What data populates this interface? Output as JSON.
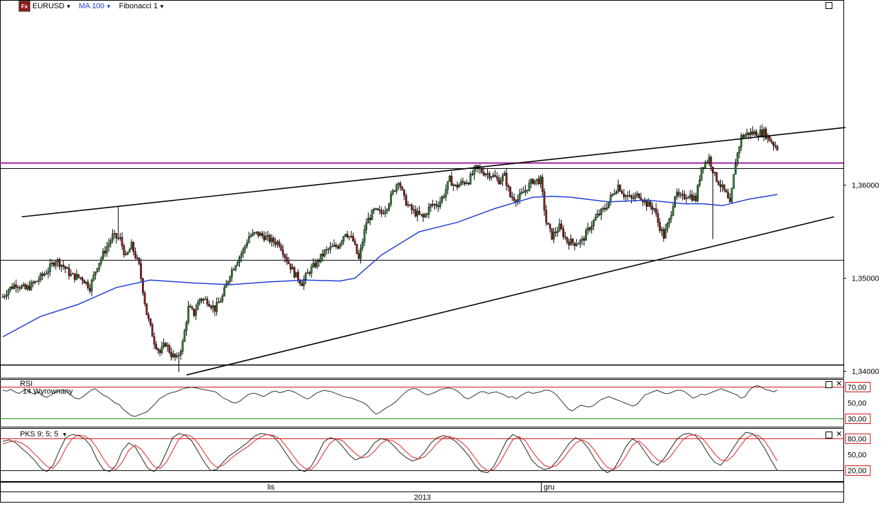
{
  "toolbar": {
    "logo": "Fx",
    "symbol": "EURUSD",
    "ma_label": "MA 100",
    "fib_label": "Fibonacci 1"
  },
  "colors": {
    "candle_up": "#2e7d32",
    "candle_down": "#8b1a1a",
    "ma": "#1f3fd6",
    "fib_line": "#a020a0",
    "rsi_upper": "#d01010",
    "rsi_lower": "#109010",
    "stoch_k": "#222222",
    "stoch_d": "#e02020"
  },
  "icons": [
    "maximize-icon",
    "close-icon",
    "dropdown-caret-icon"
  ],
  "chart_data": [
    {
      "type": "candlestick",
      "symbol": "EURUSD",
      "ylim": [
        1.3393,
        1.3799
      ],
      "yticks": [
        "1,34000",
        "1,35000",
        "1,36000"
      ],
      "xticks": [
        "lis",
        "gru"
      ],
      "year_label": "2013",
      "close_path": [
        [
          0,
          1.348
        ],
        [
          3,
          1.3488
        ],
        [
          7,
          1.3494
        ],
        [
          12,
          1.3488
        ],
        [
          18,
          1.3497
        ],
        [
          24,
          1.3509
        ],
        [
          28,
          1.352
        ],
        [
          32,
          1.3513
        ],
        [
          36,
          1.3503
        ],
        [
          42,
          1.35
        ],
        [
          46,
          1.349
        ],
        [
          50,
          1.3514
        ],
        [
          54,
          1.353
        ],
        [
          58,
          1.3545
        ],
        [
          62,
          1.3542
        ],
        [
          65,
          1.3522
        ],
        [
          68,
          1.3535
        ],
        [
          72,
          1.3513
        ],
        [
          76,
          1.3462
        ],
        [
          80,
          1.3432
        ],
        [
          83,
          1.342
        ],
        [
          86,
          1.343
        ],
        [
          89,
          1.3418
        ],
        [
          92,
          1.3413
        ],
        [
          95,
          1.343
        ],
        [
          98,
          1.3468
        ],
        [
          101,
          1.3462
        ],
        [
          104,
          1.3478
        ],
        [
          108,
          1.3476
        ],
        [
          112,
          1.3467
        ],
        [
          116,
          1.348
        ],
        [
          120,
          1.3505
        ],
        [
          124,
          1.352
        ],
        [
          127,
          1.353
        ],
        [
          130,
          1.3545
        ],
        [
          134,
          1.3548
        ],
        [
          138,
          1.3545
        ],
        [
          142,
          1.354
        ],
        [
          146,
          1.3538
        ],
        [
          150,
          1.352
        ],
        [
          154,
          1.3505
        ],
        [
          158,
          1.3495
        ],
        [
          162,
          1.3508
        ],
        [
          166,
          1.3517
        ],
        [
          170,
          1.3528
        ],
        [
          173,
          1.3532
        ],
        [
          177,
          1.3535
        ],
        [
          181,
          1.355
        ],
        [
          185,
          1.354
        ],
        [
          188,
          1.352
        ],
        [
          192,
          1.356
        ],
        [
          196,
          1.3572
        ],
        [
          200,
          1.357
        ],
        [
          203,
          1.3578
        ],
        [
          206,
          1.3592
        ],
        [
          209,
          1.3606
        ],
        [
          212,
          1.3585
        ],
        [
          215,
          1.3575
        ],
        [
          218,
          1.357
        ],
        [
          222,
          1.3565
        ],
        [
          226,
          1.3578
        ],
        [
          230,
          1.358
        ],
        [
          233,
          1.359
        ],
        [
          236,
          1.3606
        ],
        [
          239,
          1.3598
        ],
        [
          242,
          1.3602
        ],
        [
          246,
          1.3605
        ],
        [
          250,
          1.3618
        ],
        [
          254,
          1.3614
        ],
        [
          258,
          1.3611
        ],
        [
          262,
          1.3605
        ],
        [
          265,
          1.361
        ],
        [
          268,
          1.3588
        ],
        [
          272,
          1.3585
        ],
        [
          276,
          1.3595
        ],
        [
          280,
          1.3605
        ],
        [
          284,
          1.3605
        ],
        [
          287,
          1.356
        ],
        [
          290,
          1.3545
        ],
        [
          294,
          1.3555
        ],
        [
          298,
          1.354
        ],
        [
          302,
          1.3538
        ],
        [
          306,
          1.354
        ],
        [
          310,
          1.3555
        ],
        [
          314,
          1.3567
        ],
        [
          318,
          1.3575
        ],
        [
          322,
          1.359
        ],
        [
          325,
          1.36
        ],
        [
          328,
          1.359
        ],
        [
          332,
          1.3585
        ],
        [
          336,
          1.359
        ],
        [
          340,
          1.358
        ],
        [
          344,
          1.3575
        ],
        [
          346,
          1.356
        ],
        [
          349,
          1.3545
        ],
        [
          352,
          1.3562
        ],
        [
          355,
          1.359
        ],
        [
          358,
          1.3586
        ],
        [
          362,
          1.359
        ],
        [
          366,
          1.3585
        ],
        [
          369,
          1.362
        ],
        [
          373,
          1.3629
        ],
        [
          376,
          1.361
        ],
        [
          379,
          1.36
        ],
        [
          382,
          1.359
        ],
        [
          384,
          1.3578
        ],
        [
          387,
          1.3625
        ],
        [
          390,
          1.3652
        ],
        [
          394,
          1.3656
        ],
        [
          398,
          1.3656
        ],
        [
          402,
          1.3657
        ],
        [
          405,
          1.3649
        ],
        [
          409,
          1.364
        ]
      ],
      "ma100_path": [
        [
          0,
          1.3437
        ],
        [
          20,
          1.3459
        ],
        [
          40,
          1.3472
        ],
        [
          60,
          1.349
        ],
        [
          78,
          1.3498
        ],
        [
          100,
          1.3495
        ],
        [
          120,
          1.3493
        ],
        [
          140,
          1.3496
        ],
        [
          160,
          1.3498
        ],
        [
          178,
          1.3497
        ],
        [
          186,
          1.35
        ],
        [
          200,
          1.3525
        ],
        [
          220,
          1.355
        ],
        [
          240,
          1.356
        ],
        [
          260,
          1.3575
        ],
        [
          280,
          1.3587
        ],
        [
          290,
          1.3588
        ],
        [
          300,
          1.3587
        ],
        [
          320,
          1.3582
        ],
        [
          340,
          1.3584
        ],
        [
          360,
          1.358
        ],
        [
          370,
          1.358
        ],
        [
          380,
          1.3578
        ],
        [
          394,
          1.3585
        ],
        [
          409,
          1.359
        ]
      ],
      "extremes": [
        [
          93,
          1.3399
        ],
        [
          61,
          1.3578
        ],
        [
          375,
          1.3542
        ]
      ],
      "trendlines": [
        {
          "name": "upper-resistance-trendline",
          "from": [
            10,
            1.3566
          ],
          "to": [
            445,
            1.3662
          ]
        },
        {
          "name": "lower-support-trendline",
          "from": [
            97,
            1.3396
          ],
          "to": [
            439,
            1.3566
          ]
        }
      ],
      "hlines": [
        {
          "name": "fibonacci-level-line",
          "y": 1.3624,
          "color": "fib"
        },
        {
          "name": "horizontal-level-line",
          "y": 1.3618
        },
        {
          "name": "horizontal-level-line",
          "y": 1.352
        },
        {
          "name": "horizontal-level-line",
          "y": 1.3407,
          "bold": true
        }
      ]
    },
    {
      "type": "line",
      "name": "RSI",
      "settings": "14 Wyrownany",
      "ylim": [
        20,
        80
      ],
      "yticks": [
        "70,00",
        "50,00",
        "30,00"
      ],
      "upper": 70,
      "lower": 30,
      "values": [
        66,
        65,
        67,
        64,
        62,
        65,
        67,
        63,
        61,
        64,
        59,
        57,
        60,
        63,
        65,
        67,
        64,
        60,
        56,
        55,
        58,
        62,
        66,
        68,
        64,
        60,
        58,
        54,
        50,
        48,
        42,
        38,
        34,
        33,
        35,
        37,
        39,
        44,
        49,
        55,
        58,
        61,
        63,
        64,
        66,
        68,
        69,
        70,
        69,
        68,
        67,
        66,
        65,
        64,
        60,
        56,
        54,
        51,
        50,
        52,
        56,
        60,
        62,
        62,
        60,
        58,
        61,
        64,
        65,
        63,
        64,
        66,
        65,
        63,
        60,
        57,
        55,
        58,
        62,
        64,
        66,
        65,
        64,
        62,
        60,
        58,
        57,
        56,
        54,
        52,
        50,
        46,
        40,
        36,
        38,
        42,
        45,
        48,
        52,
        57,
        62,
        66,
        68,
        68,
        65,
        62,
        60,
        62,
        64,
        67,
        68,
        69,
        68,
        66,
        62,
        57,
        55,
        58,
        61,
        64,
        64,
        62,
        63,
        64,
        62,
        60,
        57,
        58,
        55,
        59,
        62,
        64,
        62,
        63,
        64,
        66,
        66,
        64,
        60,
        54,
        48,
        42,
        40,
        44,
        47,
        46,
        45,
        46,
        50,
        54,
        56,
        58,
        56,
        54,
        52,
        50,
        48,
        46,
        48,
        54,
        60,
        62,
        64,
        66,
        64,
        62,
        62,
        64,
        66,
        66,
        64,
        60,
        56,
        58,
        61,
        60,
        62,
        64,
        66,
        68,
        66,
        64,
        62,
        60,
        56,
        58,
        66,
        70,
        72,
        70,
        67,
        66,
        64,
        66
      ],
      "x_extent": [
        0,
        409
      ]
    },
    {
      "type": "line",
      "name": "PKS",
      "settings": "9; 5; 5",
      "ylim": [
        0,
        100
      ],
      "yticks": [
        "80,00",
        "50,00",
        "20,00"
      ],
      "upper": 80,
      "lower": 20,
      "series": [
        {
          "name": "K",
          "values": [
            75,
            78,
            73,
            62,
            52,
            40,
            25,
            18,
            30,
            58,
            82,
            88,
            86,
            80,
            66,
            40,
            22,
            18,
            30,
            58,
            72,
            65,
            45,
            25,
            18,
            30,
            55,
            82,
            90,
            86,
            76,
            56,
            36,
            20,
            22,
            36,
            48,
            56,
            65,
            74,
            85,
            90,
            88,
            84,
            70,
            52,
            35,
            22,
            18,
            28,
            50,
            74,
            82,
            78,
            65,
            50,
            40,
            45,
            55,
            72,
            80,
            78,
            68,
            55,
            45,
            38,
            42,
            55,
            72,
            82,
            86,
            82,
            74,
            62,
            48,
            30,
            18,
            16,
            28,
            52,
            76,
            88,
            82,
            62,
            40,
            28,
            22,
            25,
            38,
            55,
            72,
            82,
            76,
            62,
            42,
            25,
            16,
            22,
            42,
            66,
            80,
            72,
            55,
            38,
            30,
            42,
            60,
            78,
            88,
            90,
            86,
            72,
            52,
            36,
            30,
            44,
            62,
            80,
            92,
            90,
            80,
            62,
            40,
            20
          ]
        },
        {
          "name": "D",
          "values": [
            70,
            74,
            76,
            72,
            64,
            52,
            40,
            28,
            24,
            38,
            62,
            80,
            87,
            85,
            78,
            62,
            42,
            26,
            22,
            36,
            58,
            68,
            60,
            44,
            28,
            24,
            36,
            58,
            80,
            88,
            84,
            72,
            54,
            36,
            26,
            30,
            40,
            50,
            58,
            66,
            76,
            84,
            88,
            86,
            80,
            66,
            50,
            34,
            24,
            22,
            34,
            54,
            72,
            80,
            76,
            64,
            52,
            44,
            46,
            56,
            70,
            78,
            76,
            68,
            56,
            46,
            42,
            46,
            58,
            72,
            82,
            84,
            80,
            72,
            60,
            44,
            28,
            20,
            22,
            36,
            58,
            78,
            84,
            76,
            58,
            42,
            30,
            26,
            30,
            42,
            58,
            72,
            78,
            72,
            58,
            40,
            26,
            22,
            30,
            48,
            68,
            76,
            66,
            52,
            40,
            36,
            46,
            62,
            78,
            86,
            88,
            82,
            68,
            52,
            40,
            38,
            48,
            64,
            80,
            88,
            86,
            76,
            58,
            38
          ]
        }
      ],
      "x_extent": [
        0,
        409
      ]
    }
  ]
}
